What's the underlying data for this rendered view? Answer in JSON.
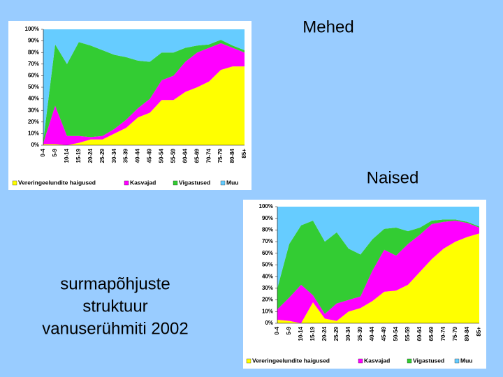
{
  "title_lines": [
    "surmapõhjuste",
    "struktuur",
    "vanuserühmiti 2002"
  ],
  "chart_data": [
    {
      "type": "area",
      "stacked": true,
      "title": "Mehed",
      "categories": [
        "0-4",
        "5-9",
        "10-14",
        "15-19",
        "20-24",
        "25-29",
        "30-34",
        "35-39",
        "40-44",
        "45-49",
        "50-54",
        "55-59",
        "60-64",
        "65-69",
        "70-74",
        "75-79",
        "80-84",
        "85+"
      ],
      "ylim": [
        0,
        100
      ],
      "yticks": [
        {
          "value": 0,
          "label": "0%"
        },
        {
          "value": 10,
          "label": "10%"
        },
        {
          "value": 20,
          "label": "20%"
        },
        {
          "value": 30,
          "label": "30%"
        },
        {
          "value": 40,
          "label": "40%"
        },
        {
          "value": 50,
          "label": "50%"
        },
        {
          "value": 60,
          "label": "60%"
        },
        {
          "value": 70,
          "label": "70%"
        },
        {
          "value": 80,
          "label": "80%"
        },
        {
          "value": 90,
          "label": "90%"
        },
        {
          "value": 100,
          "label": "100%"
        }
      ],
      "series": [
        {
          "name": "Vereringeelundite haigused",
          "color": "#ffff00",
          "values": [
            1,
            1,
            0,
            2,
            5,
            5,
            10,
            15,
            24,
            28,
            39,
            39,
            46,
            50,
            55,
            65,
            68,
            68
          ]
        },
        {
          "name": "Kasvajad",
          "color": "#ff00ff",
          "values": [
            1,
            33,
            8,
            6,
            2,
            3,
            4,
            7,
            8,
            12,
            17,
            21,
            26,
            30,
            29,
            23,
            16,
            12
          ]
        },
        {
          "name": "Vigastused",
          "color": "#33cc33",
          "values": [
            2,
            53,
            62,
            81,
            79,
            74,
            64,
            54,
            41,
            32,
            24,
            20,
            12,
            6,
            3,
            3,
            2,
            2
          ]
        },
        {
          "name": "Muu",
          "color": "#66ccff",
          "values": [
            96,
            13,
            30,
            11,
            14,
            18,
            22,
            24,
            27,
            28,
            20,
            20,
            16,
            14,
            13,
            9,
            14,
            18
          ]
        }
      ]
    },
    {
      "type": "area",
      "stacked": true,
      "title": "Naised",
      "categories": [
        "0-4",
        "5-9",
        "10-14",
        "15-19",
        "20-24",
        "25-29",
        "30-34",
        "35-39",
        "40-44",
        "45-49",
        "50-54",
        "55-59",
        "60-64",
        "65-69",
        "70-74",
        "75-79",
        "80-84",
        "85+"
      ],
      "ylim": [
        0,
        100
      ],
      "yticks": [
        {
          "value": 0,
          "label": "0%"
        },
        {
          "value": 10,
          "label": "10%"
        },
        {
          "value": 20,
          "label": "20%"
        },
        {
          "value": 30,
          "label": "30%"
        },
        {
          "value": 40,
          "label": "40%"
        },
        {
          "value": 50,
          "label": "50%"
        },
        {
          "value": 60,
          "label": "60%"
        },
        {
          "value": 70,
          "label": "70%"
        },
        {
          "value": 80,
          "label": "80%"
        },
        {
          "value": 90,
          "label": "90%"
        },
        {
          "value": 100,
          "label": "100%"
        }
      ],
      "series": [
        {
          "name": "Vereringeelundite haigused",
          "color": "#ffff00",
          "values": [
            3,
            2,
            0,
            18,
            4,
            2,
            10,
            13,
            19,
            27,
            28,
            33,
            44,
            55,
            64,
            70,
            74,
            77
          ]
        },
        {
          "name": "Kasvajad",
          "color": "#ff00ff",
          "values": [
            9,
            20,
            33,
            6,
            4,
            15,
            10,
            10,
            26,
            36,
            30,
            35,
            32,
            30,
            23,
            18,
            12,
            5
          ]
        },
        {
          "name": "Vigastused",
          "color": "#33cc33",
          "values": [
            18,
            46,
            51,
            64,
            62,
            61,
            44,
            36,
            27,
            18,
            24,
            11,
            6,
            3,
            2,
            1,
            1,
            1
          ]
        },
        {
          "name": "Muu",
          "color": "#66ccff",
          "values": [
            70,
            32,
            16,
            12,
            30,
            22,
            36,
            41,
            28,
            19,
            18,
            21,
            18,
            12,
            11,
            11,
            13,
            17
          ]
        }
      ]
    }
  ]
}
